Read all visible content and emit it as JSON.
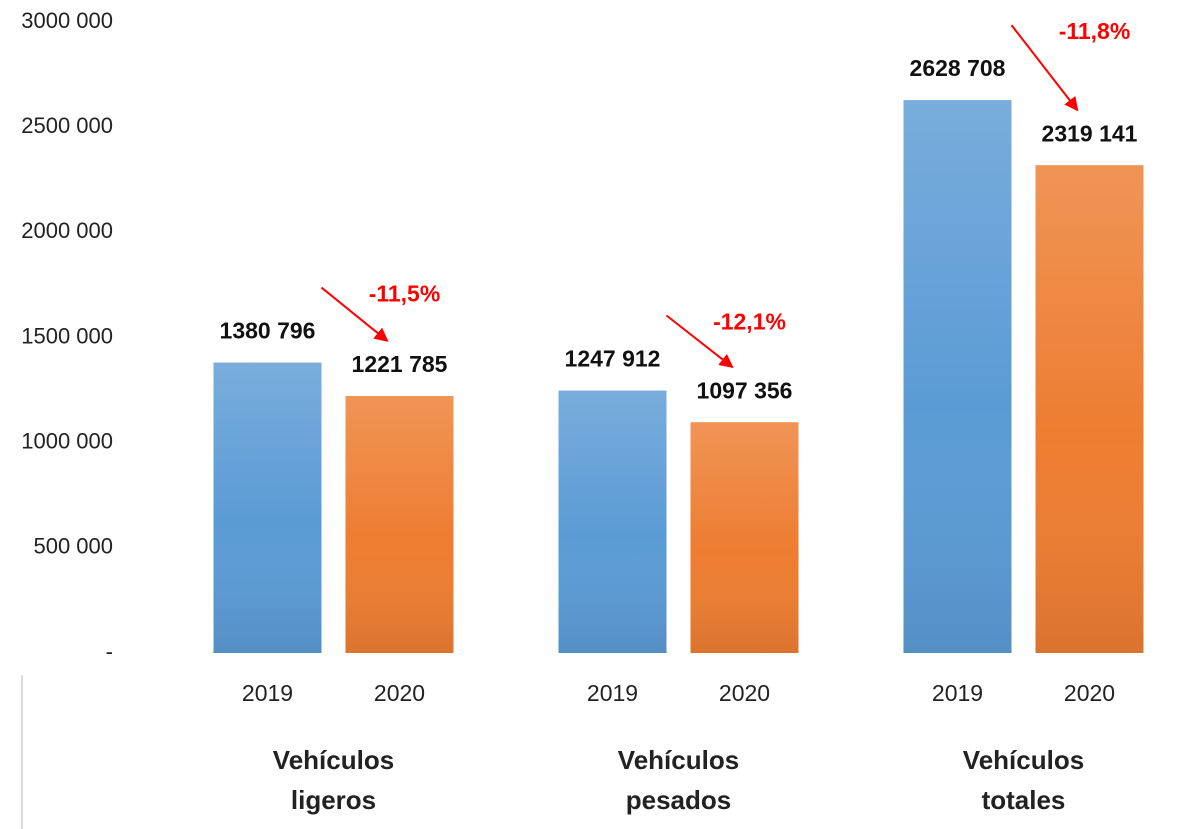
{
  "chart_data": {
    "type": "bar",
    "categories": [
      "Vehículos ligeros",
      "Vehículos pesados",
      "Vehículos totales"
    ],
    "series": [
      {
        "name": "2019",
        "color": "#5b9bd5",
        "values": [
          1380796,
          1247912,
          2628708
        ],
        "value_labels": [
          "1380 796",
          "1247 912",
          "2628 708"
        ]
      },
      {
        "name": "2020",
        "color": "#ed7d31",
        "values": [
          1221785,
          1097356,
          2319141
        ],
        "value_labels": [
          "1221 785",
          "1097 356",
          "2319 141"
        ]
      }
    ],
    "annotations": [
      "-11,5%",
      "-12,1%",
      "-11,8%"
    ],
    "annotation_color": "#ff0000",
    "ylim": [
      0,
      3000000
    ],
    "yticks": [
      {
        "value": 0,
        "label": "-"
      },
      {
        "value": 500000,
        "label": "500 000"
      },
      {
        "value": 1000000,
        "label": "1000 000"
      },
      {
        "value": 1500000,
        "label": "1500 000"
      },
      {
        "value": 2000000,
        "label": "2000 000"
      },
      {
        "value": 2500000,
        "label": "2500 000"
      },
      {
        "value": 3000000,
        "label": "3000 000"
      }
    ],
    "grid": false
  }
}
